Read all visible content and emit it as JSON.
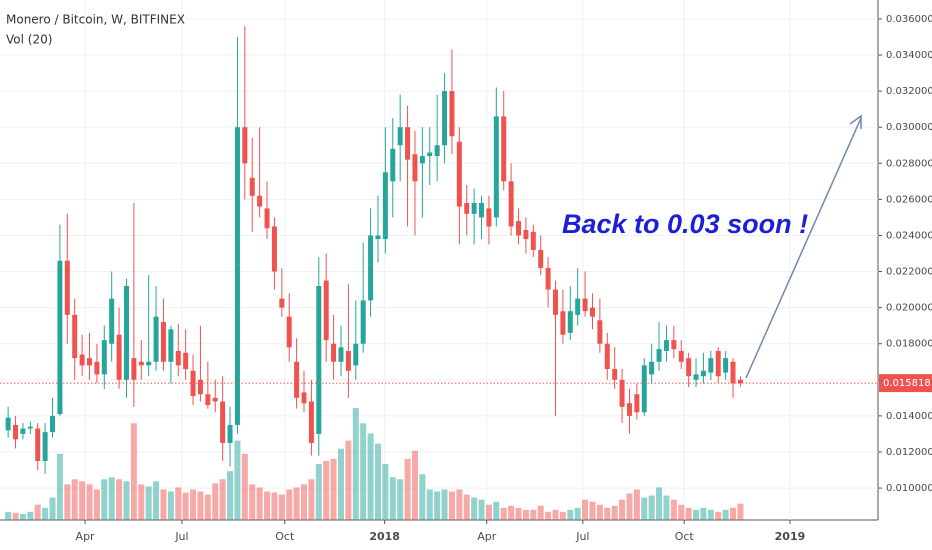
{
  "chart_data": {
    "type": "candlestick",
    "title": "Monero / Bitcoin, W, BITFINEX",
    "subtitle": "Vol (20)",
    "annotation": "Back to 0.03 soon !",
    "up_color": "#26a69a",
    "down_color": "#ef5350",
    "ylim": [
      0.00823,
      0.03705
    ],
    "xlim": [
      -1.1,
      117.6
    ],
    "yticks": [
      {
        "value": 0.01,
        "label": "0.010000"
      },
      {
        "value": 0.012,
        "label": "0.012000"
      },
      {
        "value": 0.014,
        "label": "0.014000"
      },
      {
        "value": 0.016,
        "label": "0.016000"
      },
      {
        "value": 0.018,
        "label": "0.018000"
      },
      {
        "value": 0.02,
        "label": "0.020000"
      },
      {
        "value": 0.022,
        "label": "0.022000"
      },
      {
        "value": 0.024,
        "label": "0.024000"
      },
      {
        "value": 0.026,
        "label": "0.026000"
      },
      {
        "value": 0.028,
        "label": "0.028000"
      },
      {
        "value": 0.03,
        "label": "0.030000"
      },
      {
        "value": 0.032,
        "label": "0.032000"
      },
      {
        "value": 0.034,
        "label": "0.034000"
      },
      {
        "value": 0.036,
        "label": "0.036000"
      }
    ],
    "xticks": [
      {
        "value": 10.4,
        "label": "Apr"
      },
      {
        "value": 23.5,
        "label": "Jul"
      },
      {
        "value": 37.4,
        "label": "Oct"
      },
      {
        "value": 50.9,
        "label": "2018"
      },
      {
        "value": 64.7,
        "label": "Apr"
      },
      {
        "value": 77.7,
        "label": "Jul"
      },
      {
        "value": 91.4,
        "label": "Oct"
      },
      {
        "value": 105.7,
        "label": "2019"
      }
    ],
    "last_price": {
      "value": 0.015818,
      "label": "0.015818"
    },
    "candles": [
      [
        0.0132,
        0.0145,
        0.0128,
        0.0139
      ],
      [
        0.0135,
        0.014,
        0.0122,
        0.0127
      ],
      [
        0.013,
        0.0136,
        0.0127,
        0.0133
      ],
      [
        0.0133,
        0.0137,
        0.013,
        0.0134
      ],
      [
        0.0133,
        0.0136,
        0.011,
        0.0115
      ],
      [
        0.0115,
        0.0136,
        0.0108,
        0.0131
      ],
      [
        0.0131,
        0.015,
        0.0128,
        0.014
      ],
      [
        0.0141,
        0.0246,
        0.014,
        0.0226
      ],
      [
        0.0226,
        0.0252,
        0.018,
        0.0196
      ],
      [
        0.0196,
        0.0205,
        0.016,
        0.0172
      ],
      [
        0.0174,
        0.0185,
        0.0162,
        0.0168
      ],
      [
        0.0172,
        0.0186,
        0.016,
        0.0168
      ],
      [
        0.017,
        0.018,
        0.0158,
        0.0163
      ],
      [
        0.0163,
        0.019,
        0.0155,
        0.0182
      ],
      [
        0.018,
        0.022,
        0.017,
        0.0205
      ],
      [
        0.0185,
        0.02,
        0.0155,
        0.016
      ],
      [
        0.016,
        0.0216,
        0.015,
        0.0212
      ],
      [
        0.0172,
        0.0258,
        0.0145,
        0.016
      ],
      [
        0.017,
        0.0182,
        0.016,
        0.0168
      ],
      [
        0.0168,
        0.0218,
        0.0162,
        0.017
      ],
      [
        0.017,
        0.0212,
        0.0165,
        0.0195
      ],
      [
        0.0192,
        0.0205,
        0.0165,
        0.017
      ],
      [
        0.017,
        0.019,
        0.0158,
        0.0188
      ],
      [
        0.0176,
        0.0191,
        0.0162,
        0.0168
      ],
      [
        0.0175,
        0.0188,
        0.016,
        0.0166
      ],
      [
        0.0165,
        0.0174,
        0.0146,
        0.0151
      ],
      [
        0.016,
        0.019,
        0.0148,
        0.0152
      ],
      [
        0.0152,
        0.017,
        0.0144,
        0.0146
      ],
      [
        0.015,
        0.016,
        0.0142,
        0.0148
      ],
      [
        0.0148,
        0.0162,
        0.0115,
        0.0125
      ],
      [
        0.0125,
        0.0145,
        0.0112,
        0.0135
      ],
      [
        0.0135,
        0.035,
        0.013,
        0.03
      ],
      [
        0.03,
        0.0356,
        0.026,
        0.028
      ],
      [
        0.0272,
        0.0294,
        0.0242,
        0.0262
      ],
      [
        0.0262,
        0.03,
        0.025,
        0.0256
      ],
      [
        0.0255,
        0.027,
        0.0238,
        0.0244
      ],
      [
        0.0245,
        0.025,
        0.021,
        0.022
      ],
      [
        0.0205,
        0.0222,
        0.0195,
        0.02
      ],
      [
        0.0195,
        0.0208,
        0.017,
        0.0178
      ],
      [
        0.017,
        0.0183,
        0.0144,
        0.015
      ],
      [
        0.0153,
        0.0165,
        0.0142,
        0.0147
      ],
      [
        0.0148,
        0.016,
        0.0118,
        0.0125
      ],
      [
        0.013,
        0.0228,
        0.0118,
        0.0212
      ],
      [
        0.0215,
        0.023,
        0.017,
        0.0182
      ],
      [
        0.018,
        0.0196,
        0.016,
        0.017
      ],
      [
        0.017,
        0.019,
        0.0162,
        0.0178
      ],
      [
        0.0176,
        0.0213,
        0.015,
        0.0165
      ],
      [
        0.0168,
        0.0204,
        0.016,
        0.018
      ],
      [
        0.018,
        0.0236,
        0.0175,
        0.0204
      ],
      [
        0.0204,
        0.0255,
        0.0195,
        0.024
      ],
      [
        0.0238,
        0.0262,
        0.0225,
        0.024
      ],
      [
        0.0238,
        0.03,
        0.023,
        0.0275
      ],
      [
        0.027,
        0.0305,
        0.025,
        0.0288
      ],
      [
        0.029,
        0.0318,
        0.027,
        0.03
      ],
      [
        0.03,
        0.0312,
        0.0245,
        0.0282
      ],
      [
        0.0285,
        0.0298,
        0.024,
        0.027
      ],
      [
        0.028,
        0.03,
        0.025,
        0.0284
      ],
      [
        0.0284,
        0.03,
        0.0268,
        0.0286
      ],
      [
        0.0284,
        0.0318,
        0.027,
        0.029
      ],
      [
        0.029,
        0.033,
        0.028,
        0.032
      ],
      [
        0.032,
        0.0343,
        0.0285,
        0.0295
      ],
      [
        0.0292,
        0.03,
        0.0235,
        0.0256
      ],
      [
        0.0258,
        0.0268,
        0.024,
        0.0252
      ],
      [
        0.0252,
        0.0266,
        0.0235,
        0.0258
      ],
      [
        0.025,
        0.0262,
        0.0238,
        0.0258
      ],
      [
        0.0255,
        0.0262,
        0.0235,
        0.0245
      ],
      [
        0.025,
        0.0322,
        0.0245,
        0.0306
      ],
      [
        0.0306,
        0.032,
        0.0265,
        0.027
      ],
      [
        0.027,
        0.028,
        0.024,
        0.0245
      ],
      [
        0.0248,
        0.0255,
        0.0235,
        0.024
      ],
      [
        0.0243,
        0.025,
        0.023,
        0.0238
      ],
      [
        0.0242,
        0.0246,
        0.0228,
        0.0232
      ],
      [
        0.0232,
        0.024,
        0.0218,
        0.0222
      ],
      [
        0.0222,
        0.0228,
        0.02,
        0.021
      ],
      [
        0.021,
        0.0215,
        0.014,
        0.0196
      ],
      [
        0.0198,
        0.021,
        0.018,
        0.0185
      ],
      [
        0.0186,
        0.0212,
        0.0182,
        0.0198
      ],
      [
        0.0196,
        0.0222,
        0.019,
        0.0205
      ],
      [
        0.0205,
        0.022,
        0.0195,
        0.0198
      ],
      [
        0.02,
        0.0208,
        0.0188,
        0.0195
      ],
      [
        0.0193,
        0.0205,
        0.0175,
        0.018
      ],
      [
        0.018,
        0.0186,
        0.016,
        0.0166
      ],
      [
        0.0166,
        0.0178,
        0.0155,
        0.016
      ],
      [
        0.016,
        0.0166,
        0.0136,
        0.0145
      ],
      [
        0.0147,
        0.0155,
        0.013,
        0.014
      ],
      [
        0.0152,
        0.0158,
        0.0138,
        0.0142
      ],
      [
        0.0142,
        0.0172,
        0.014,
        0.0168
      ],
      [
        0.0163,
        0.018,
        0.0158,
        0.017
      ],
      [
        0.017,
        0.0192,
        0.0165,
        0.0177
      ],
      [
        0.0176,
        0.019,
        0.017,
        0.0182
      ],
      [
        0.0182,
        0.019,
        0.0172,
        0.0177
      ],
      [
        0.0176,
        0.0182,
        0.0166,
        0.017
      ],
      [
        0.0172,
        0.0175,
        0.0156,
        0.0162
      ],
      [
        0.016,
        0.0172,
        0.0156,
        0.0163
      ],
      [
        0.0162,
        0.0175,
        0.0158,
        0.0165
      ],
      [
        0.0164,
        0.0176,
        0.016,
        0.0172
      ],
      [
        0.0176,
        0.0178,
        0.0158,
        0.0162
      ],
      [
        0.0164,
        0.0176,
        0.016,
        0.0172
      ],
      [
        0.017,
        0.0172,
        0.015,
        0.0158
      ],
      [
        0.016,
        0.0162,
        0.0156,
        0.0158
      ]
    ],
    "volume": [
      8,
      7,
      6,
      8,
      15,
      12,
      22,
      65,
      35,
      40,
      38,
      35,
      30,
      40,
      42,
      40,
      38,
      95,
      35,
      33,
      38,
      30,
      28,
      32,
      27,
      30,
      28,
      25,
      36,
      40,
      48,
      78,
      65,
      35,
      32,
      28,
      27,
      25,
      30,
      32,
      35,
      40,
      55,
      58,
      60,
      70,
      78,
      110,
      95,
      85,
      75,
      55,
      42,
      40,
      60,
      68,
      45,
      30,
      28,
      30,
      28,
      30,
      25,
      22,
      20,
      15,
      18,
      12,
      14,
      12,
      10,
      10,
      14,
      8,
      10,
      8,
      10,
      12,
      20,
      18,
      15,
      12,
      14,
      20,
      26,
      30,
      22,
      24,
      32,
      24,
      20,
      15,
      12,
      10,
      12,
      10,
      8,
      10,
      12,
      16
    ]
  }
}
